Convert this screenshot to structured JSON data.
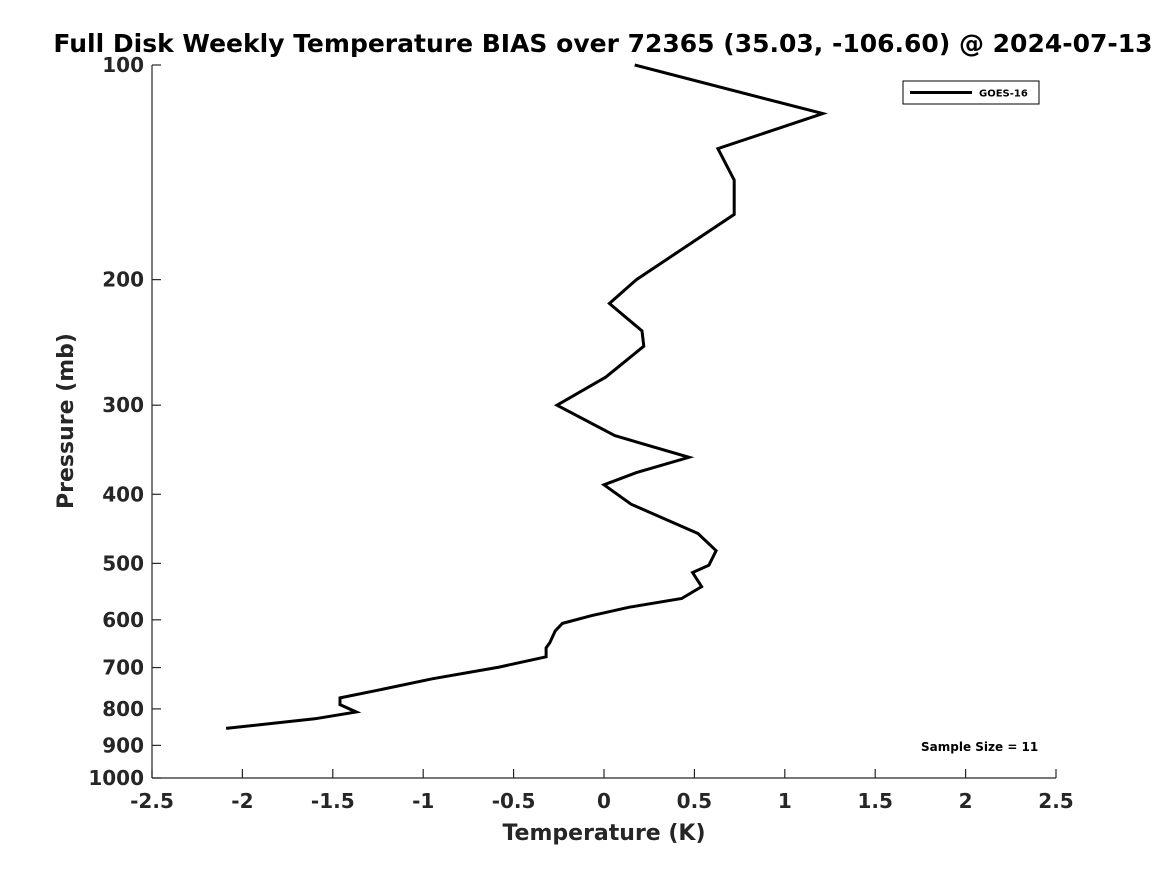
{
  "chart_data": {
    "type": "line",
    "title": "Full Disk Weekly Temperature BIAS over 72365 (35.03, -106.60) @ 2024-07-13",
    "xlabel": "Temperature (K)",
    "ylabel": "Pressure (mb)",
    "xlim": [
      -2.5,
      2.5
    ],
    "ylim": [
      100,
      1000
    ],
    "yscale": "log",
    "y_reversed": true,
    "grid": false,
    "legend_position": "top-right",
    "x_ticks": [
      "-2.5",
      "-2",
      "-1.5",
      "-1",
      "-0.5",
      "0",
      "0.5",
      "1",
      "1.5",
      "2",
      "2.5"
    ],
    "y_ticks": [
      "100",
      "200",
      "300",
      "400",
      "500",
      "600",
      "700",
      "800",
      "900",
      "1000"
    ],
    "series": [
      {
        "name": "GOES-16",
        "color": "#000000",
        "x": [
          0.17,
          1.21,
          0.63,
          0.72,
          0.72,
          0.18,
          0.03,
          0.21,
          0.22,
          0.01,
          -0.26,
          0.06,
          0.47,
          0.18,
          0.0,
          0.15,
          0.52,
          0.62,
          0.58,
          0.49,
          0.54,
          0.43,
          0.14,
          -0.07,
          -0.23,
          -0.27,
          -0.3,
          -0.32,
          -0.32,
          -0.58,
          -0.95,
          -1.25,
          -1.46,
          -1.46,
          -1.37,
          -1.6,
          -2.09
        ],
        "y": [
          100,
          117,
          131,
          145,
          162,
          200,
          216,
          236,
          248,
          274,
          300,
          331,
          355,
          373,
          388,
          413,
          454,
          480,
          503,
          515,
          539,
          560,
          576,
          592,
          607,
          622,
          646,
          657,
          676,
          699,
          726,
          753,
          772,
          789,
          808,
          826,
          852
        ]
      }
    ],
    "annotations": [
      "Sample Size = 11"
    ]
  }
}
